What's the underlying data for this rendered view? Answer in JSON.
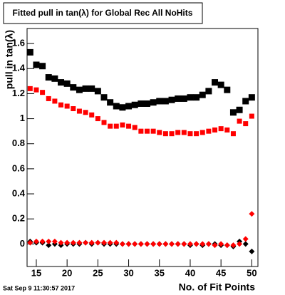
{
  "chart_data": {
    "type": "scatter",
    "title": "Fitted pull in tan(λ) for Global Rec All NoHits",
    "x_label": "No. of Fit Points",
    "y_label": "pull in tan(λ)",
    "timestamp": "Sat Sep  9 11:30:57 2017",
    "x": [
      14,
      15,
      16,
      17,
      18,
      19,
      20,
      21,
      22,
      23,
      24,
      25,
      26,
      27,
      28,
      29,
      30,
      31,
      32,
      33,
      34,
      35,
      36,
      37,
      38,
      39,
      40,
      41,
      42,
      43,
      44,
      45,
      46,
      47,
      48,
      49,
      50
    ],
    "series": [
      {
        "color": "#000000",
        "marker": "square",
        "values": [
          1.53,
          1.43,
          1.42,
          1.33,
          1.32,
          1.29,
          1.28,
          1.25,
          1.23,
          1.24,
          1.24,
          1.22,
          1.17,
          1.13,
          1.1,
          1.09,
          1.1,
          1.11,
          1.12,
          1.12,
          1.13,
          1.14,
          1.14,
          1.15,
          1.16,
          1.16,
          1.17,
          1.17,
          1.19,
          1.22,
          1.29,
          1.27,
          1.23,
          1.05,
          1.07,
          1.14,
          1.17
        ]
      },
      {
        "color": "#ff0000",
        "marker": "square",
        "values": [
          1.24,
          1.23,
          1.21,
          1.16,
          1.14,
          1.11,
          1.1,
          1.08,
          1.06,
          1.05,
          1.03,
          1.0,
          0.97,
          0.94,
          0.94,
          0.95,
          0.94,
          0.93,
          0.9,
          0.9,
          0.9,
          0.89,
          0.88,
          0.88,
          0.89,
          0.89,
          0.88,
          0.88,
          0.89,
          0.9,
          0.91,
          0.92,
          0.91,
          0.88,
          0.98,
          0.96,
          1.02
        ]
      },
      {
        "color": "#000000",
        "marker": "diamond",
        "values": [
          0.02,
          0.01,
          0.01,
          -0.01,
          0.0,
          -0.01,
          0.0,
          0.0,
          0.0,
          0.01,
          0.0,
          0.01,
          0.0,
          0.0,
          0.0,
          0.0,
          0.0,
          0.0,
          0.0,
          0.0,
          0.0,
          0.0,
          0.0,
          0.0,
          0.0,
          0.0,
          -0.01,
          0.0,
          -0.01,
          0.0,
          0.0,
          -0.01,
          -0.01,
          -0.02,
          0.02,
          0.0,
          -0.06
        ]
      },
      {
        "color": "#ff0000",
        "marker": "diamond",
        "values": [
          0.01,
          0.02,
          0.02,
          0.02,
          0.02,
          0.01,
          0.01,
          0.01,
          0.01,
          0.01,
          0.01,
          0.01,
          0.01,
          0.01,
          0.01,
          0.0,
          0.0,
          0.0,
          0.0,
          0.0,
          0.0,
          0.0,
          0.0,
          0.0,
          0.0,
          0.0,
          0.0,
          0.0,
          0.0,
          0.0,
          -0.01,
          0.0,
          -0.01,
          -0.01,
          0.0,
          0.04,
          0.24
        ]
      }
    ],
    "xlim": [
      13.5,
      51.0
    ],
    "ylim": [
      -0.18,
      1.72
    ],
    "xticks": [
      15,
      20,
      25,
      30,
      35,
      40,
      45,
      50
    ],
    "yticks": [
      0,
      0.2,
      0.4,
      0.6,
      0.8,
      1,
      1.2,
      1.4,
      1.6
    ]
  }
}
